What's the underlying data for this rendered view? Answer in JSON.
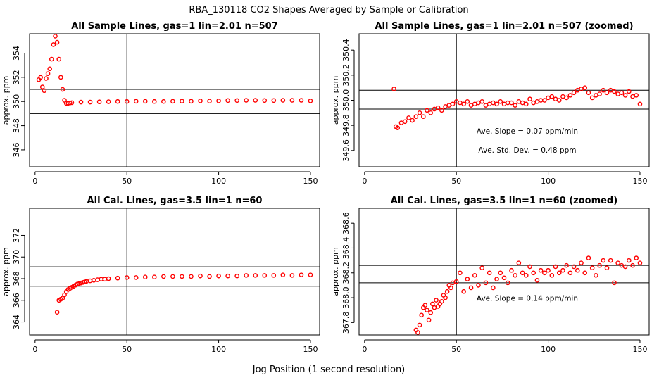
{
  "title": "RBA_130118  CO2 Shapes Averaged by Sample or Calibration",
  "xlabel": "Jog Position (1 second resolution)",
  "colors": {
    "points": "#ff0000",
    "lines": "#000000"
  },
  "chart_data": [
    {
      "type": "scatter",
      "title": "All Sample Lines, gas=1 lin=2.01 n=507",
      "ylabel": "approx. ppm",
      "xlim": [
        -3,
        155
      ],
      "ylim": [
        344.6,
        355.6
      ],
      "xticks": [
        "0",
        "50",
        "100",
        "150"
      ],
      "yticks": [
        "346",
        "348",
        "350",
        "352",
        "354"
      ],
      "hlines": [
        351.0,
        349.0
      ],
      "vline": 50,
      "annotations": [],
      "series": [
        {
          "x": [
            2,
            3,
            4,
            5,
            6,
            7,
            8,
            9,
            10,
            11,
            12,
            13,
            14,
            15,
            16,
            17,
            18,
            19,
            20,
            25,
            30,
            35,
            40,
            45,
            50,
            55,
            60,
            65,
            70,
            75,
            80,
            85,
            90,
            95,
            100,
            105,
            110,
            115,
            120,
            125,
            130,
            135,
            140,
            145,
            150
          ],
          "y": [
            351.8,
            352.0,
            351.2,
            350.9,
            351.9,
            352.3,
            352.7,
            353.5,
            354.7,
            355.4,
            354.9,
            353.5,
            352.0,
            351.0,
            350.1,
            349.85,
            349.85,
            349.88,
            349.9,
            349.95,
            349.95,
            349.97,
            349.98,
            350.0,
            350.0,
            350.02,
            350.02,
            350.0,
            350.0,
            350.02,
            350.03,
            350.02,
            350.05,
            350.03,
            350.05,
            350.08,
            350.08,
            350.1,
            350.1,
            350.08,
            350.08,
            350.1,
            350.1,
            350.1,
            350.05
          ]
        }
      ]
    },
    {
      "type": "scatter",
      "title": "All Sample Lines, gas=1 lin=2.01 n=507 (zoomed)",
      "ylabel": "approx. ppm",
      "xlim": [
        -3,
        155
      ],
      "ylim": [
        349.47,
        350.53
      ],
      "xticks": [
        "0",
        "50",
        "100",
        "150"
      ],
      "yticks": [
        "349.6",
        "349.8",
        "350.0",
        "350.2",
        "350.4"
      ],
      "hlines": [
        350.08,
        349.93
      ],
      "vline": 50,
      "annotations": [
        "Ave. Slope =  0.07  ppm/min",
        "Ave. Std. Dev. =  0.48  ppm"
      ],
      "series": [
        {
          "x": [
            16,
            17,
            18,
            20,
            22,
            24,
            26,
            28,
            30,
            32,
            34,
            36,
            38,
            40,
            42,
            44,
            46,
            48,
            50,
            52,
            54,
            56,
            58,
            60,
            62,
            64,
            66,
            68,
            70,
            72,
            74,
            76,
            78,
            80,
            82,
            84,
            86,
            88,
            90,
            92,
            94,
            96,
            98,
            100,
            102,
            104,
            106,
            108,
            110,
            112,
            114,
            116,
            118,
            120,
            122,
            124,
            126,
            128,
            130,
            132,
            134,
            136,
            138,
            140,
            142,
            144,
            146,
            148,
            150
          ],
          "y": [
            350.09,
            349.79,
            349.78,
            349.82,
            349.83,
            349.86,
            349.84,
            349.87,
            349.9,
            349.87,
            349.92,
            349.9,
            349.93,
            349.94,
            349.92,
            349.95,
            349.96,
            349.97,
            349.99,
            349.98,
            349.97,
            349.99,
            349.96,
            349.97,
            349.98,
            349.99,
            349.96,
            349.97,
            349.98,
            349.97,
            349.99,
            349.97,
            349.98,
            349.98,
            349.96,
            349.99,
            349.98,
            349.97,
            350.01,
            349.98,
            349.99,
            350.0,
            350.0,
            350.02,
            350.03,
            350.01,
            350.0,
            350.03,
            350.02,
            350.04,
            350.06,
            350.08,
            350.09,
            350.1,
            350.06,
            350.02,
            350.04,
            350.05,
            350.08,
            350.06,
            350.08,
            350.07,
            350.05,
            350.06,
            350.04,
            350.07,
            350.03,
            350.04,
            349.97
          ]
        }
      ]
    },
    {
      "type": "scatter",
      "title": "All Cal. Lines, gas=3.5 lin=1 n=60",
      "ylabel": "approx. ppm",
      "xlim": [
        -3,
        155
      ],
      "ylim": [
        362.8,
        374.5
      ],
      "xticks": [
        "0",
        "50",
        "100",
        "150"
      ],
      "yticks": [
        "364",
        "366",
        "368",
        "370",
        "372"
      ],
      "hlines": [
        369.1,
        367.3
      ],
      "vline": 50,
      "annotations": [],
      "series": [
        {
          "x": [
            12,
            13,
            14,
            15,
            16,
            17,
            18,
            19,
            20,
            21,
            22,
            23,
            24,
            25,
            26,
            27,
            28,
            30,
            32,
            34,
            36,
            38,
            40,
            45,
            50,
            55,
            60,
            65,
            70,
            75,
            80,
            85,
            90,
            95,
            100,
            105,
            110,
            115,
            120,
            125,
            130,
            135,
            140,
            145,
            150
          ],
          "y": [
            364.9,
            366.0,
            366.1,
            366.2,
            366.5,
            366.8,
            367.0,
            367.1,
            367.2,
            367.3,
            367.4,
            367.5,
            367.55,
            367.6,
            367.65,
            367.7,
            367.75,
            367.8,
            367.85,
            367.9,
            367.95,
            367.95,
            368.0,
            368.05,
            368.1,
            368.1,
            368.15,
            368.15,
            368.2,
            368.2,
            368.2,
            368.2,
            368.25,
            368.2,
            368.25,
            368.25,
            368.25,
            368.3,
            368.3,
            368.3,
            368.3,
            368.35,
            368.3,
            368.35,
            368.35
          ]
        }
      ]
    },
    {
      "type": "scatter",
      "title": "All Cal. Lines, gas=3.5 lin=1 n=60 (zoomed)",
      "ylabel": "approx. ppm",
      "xlim": [
        -3,
        155
      ],
      "ylim": [
        367.7,
        368.72
      ],
      "xticks": [
        "0",
        "50",
        "100",
        "150"
      ],
      "yticks": [
        "367.8",
        "368.0",
        "368.2",
        "368.4",
        "368.6"
      ],
      "hlines": [
        368.26,
        368.12
      ],
      "vline": 50,
      "annotations": [
        "Ave. Slope =  0.14  ppm/min"
      ],
      "series": [
        {
          "x": [
            28,
            29,
            30,
            31,
            32,
            33,
            34,
            35,
            36,
            37,
            38,
            39,
            40,
            41,
            42,
            43,
            44,
            45,
            46,
            47,
            48,
            50,
            52,
            54,
            56,
            58,
            60,
            62,
            64,
            66,
            68,
            70,
            72,
            74,
            76,
            78,
            80,
            82,
            84,
            86,
            88,
            90,
            92,
            94,
            96,
            98,
            100,
            102,
            104,
            106,
            108,
            110,
            112,
            114,
            116,
            118,
            120,
            122,
            124,
            126,
            128,
            130,
            132,
            134,
            136,
            138,
            140,
            142,
            144,
            146,
            148,
            150
          ],
          "y": [
            367.74,
            367.72,
            367.78,
            367.86,
            367.92,
            367.94,
            367.9,
            367.82,
            367.88,
            367.95,
            367.92,
            367.98,
            367.93,
            367.95,
            367.97,
            368.02,
            368.0,
            368.05,
            368.1,
            368.08,
            368.12,
            368.13,
            368.2,
            368.05,
            368.15,
            368.08,
            368.18,
            368.1,
            368.24,
            368.12,
            368.2,
            368.08,
            368.15,
            368.2,
            368.16,
            368.12,
            368.22,
            368.18,
            368.28,
            368.2,
            368.18,
            368.25,
            368.2,
            368.14,
            368.22,
            368.2,
            368.22,
            368.18,
            368.25,
            368.2,
            368.22,
            368.26,
            368.2,
            368.25,
            368.22,
            368.28,
            368.2,
            368.32,
            368.24,
            368.18,
            368.26,
            368.3,
            368.24,
            368.3,
            368.12,
            368.28,
            368.26,
            368.25,
            368.3,
            368.26,
            368.32,
            368.28
          ]
        }
      ]
    }
  ]
}
